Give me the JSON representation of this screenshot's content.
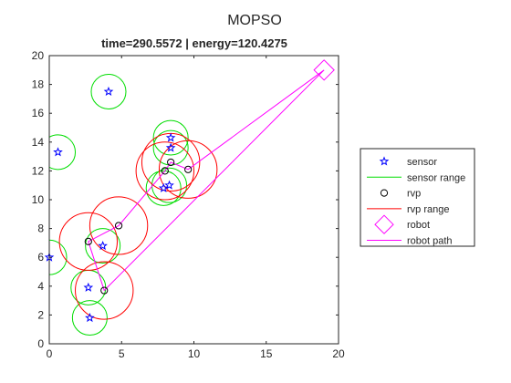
{
  "figure_title": "MOPSO",
  "chart_data": {
    "type": "scatter",
    "title": "time=290.5572 | energy=120.4275",
    "xlabel": "",
    "ylabel": "",
    "xlim": [
      0,
      20
    ],
    "ylim": [
      0,
      20
    ],
    "xticks": [
      0,
      5,
      10,
      15,
      20
    ],
    "yticks": [
      0,
      2,
      4,
      6,
      8,
      10,
      12,
      14,
      16,
      18,
      20
    ],
    "grid": false,
    "legend_position": "outside-right",
    "colors": {
      "sensor": "#0000ff",
      "sensor_range": "#00dd00",
      "rvp": "#000000",
      "rvp_range": "#ff0000",
      "robot": "#ff00ff",
      "robot_path": "#ff00ff"
    },
    "series": [
      {
        "name": "sensor",
        "marker": "star",
        "points": [
          [
            0.0,
            6.0
          ],
          [
            0.6,
            13.3
          ],
          [
            2.8,
            1.8
          ],
          [
            2.7,
            3.9
          ],
          [
            3.7,
            6.8
          ],
          [
            4.1,
            17.5
          ],
          [
            7.9,
            10.8
          ],
          [
            8.3,
            11.0
          ],
          [
            8.4,
            13.6
          ],
          [
            8.4,
            14.3
          ]
        ]
      },
      {
        "name": "sensor range",
        "radius": 1.2,
        "centers": [
          [
            0.0,
            6.0
          ],
          [
            0.6,
            13.3
          ],
          [
            2.8,
            1.8
          ],
          [
            2.7,
            3.9
          ],
          [
            3.7,
            6.8
          ],
          [
            4.1,
            17.5
          ],
          [
            7.9,
            10.8
          ],
          [
            8.3,
            11.0
          ],
          [
            8.4,
            13.6
          ],
          [
            8.4,
            14.3
          ]
        ]
      },
      {
        "name": "rvp",
        "marker": "circle",
        "points": [
          [
            3.8,
            3.7
          ],
          [
            2.7,
            7.1
          ],
          [
            4.8,
            8.2
          ],
          [
            8.0,
            12.0
          ],
          [
            8.4,
            12.6
          ],
          [
            9.6,
            12.1
          ]
        ]
      },
      {
        "name": "rvp range",
        "radius": 2.0,
        "centers": [
          [
            3.8,
            3.7
          ],
          [
            2.7,
            7.1
          ],
          [
            4.8,
            8.2
          ],
          [
            8.0,
            12.0
          ],
          [
            8.4,
            12.6
          ],
          [
            9.6,
            12.1
          ]
        ]
      },
      {
        "name": "robot",
        "marker": "diamond",
        "points": [
          [
            19.0,
            19.0
          ]
        ]
      },
      {
        "name": "robot path",
        "points": [
          [
            19.0,
            19.0
          ],
          [
            3.8,
            3.7
          ],
          [
            2.7,
            7.1
          ],
          [
            4.8,
            8.2
          ],
          [
            8.0,
            12.0
          ],
          [
            8.4,
            12.6
          ],
          [
            9.6,
            12.1
          ],
          [
            19.0,
            19.0
          ]
        ]
      }
    ]
  }
}
